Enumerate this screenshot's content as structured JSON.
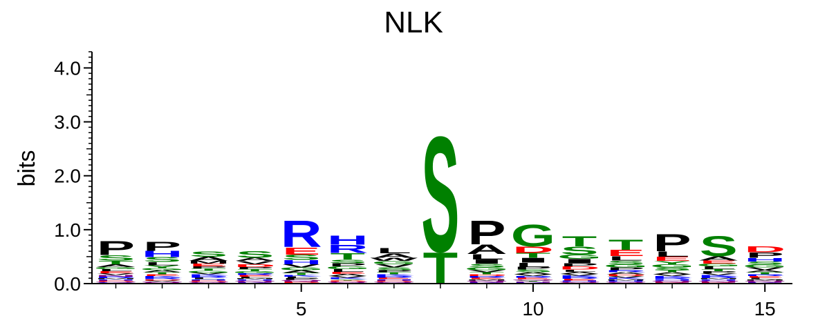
{
  "chart_data": {
    "type": "sequence-logo",
    "title": "NLK",
    "ylabel": "bits",
    "xlabel": "",
    "ylim": [
      0,
      4.3
    ],
    "y_ticks": [
      "0.0",
      "1.0",
      "2.0",
      "3.0",
      "4.0"
    ],
    "y_tick_values": [
      0,
      1,
      2,
      3,
      4
    ],
    "x_ticks": [
      "5",
      "10",
      "15"
    ],
    "x_tick_values": [
      5,
      10,
      15
    ],
    "positions": [
      1,
      2,
      3,
      4,
      5,
      6,
      7,
      8,
      9,
      10,
      11,
      12,
      13,
      14,
      15
    ],
    "colors": {
      "polar": "#008000",
      "basic": "#0000ff",
      "acidic": "#ff0000",
      "hydrophobic": "#000000",
      "neutral": "#800080"
    },
    "residue_colors": {
      "S": "#008000",
      "T": "#008000",
      "G": "#008000",
      "Y": "#008000",
      "C": "#008000",
      "N": "#800080",
      "Q": "#800080",
      "R": "#0000ff",
      "K": "#0000ff",
      "H": "#0000ff",
      "D": "#ff0000",
      "E": "#ff0000",
      "P": "#000000",
      "A": "#000000",
      "L": "#000000",
      "I": "#000000",
      "V": "#000000",
      "M": "#000000",
      "F": "#000000",
      "W": "#000000"
    },
    "stacks": [
      [
        [
          "P",
          0.26
        ],
        [
          "S",
          0.1
        ],
        [
          "T",
          0.07
        ],
        [
          "A",
          0.05
        ],
        [
          "E",
          0.04
        ],
        [
          "L",
          0.04
        ],
        [
          "G",
          0.04
        ],
        [
          "R",
          0.03
        ],
        [
          "N",
          0.03
        ],
        [
          "V",
          0.03
        ],
        [
          "K",
          0.02
        ],
        [
          "Q",
          0.02
        ],
        [
          "D",
          0.02
        ],
        [
          "H",
          0.02
        ],
        [
          "M",
          0.02
        ]
      ],
      [
        [
          "P",
          0.17
        ],
        [
          "H",
          0.12
        ],
        [
          "L",
          0.06
        ],
        [
          "S",
          0.09
        ],
        [
          "Y",
          0.05
        ],
        [
          "T",
          0.04
        ],
        [
          "A",
          0.04
        ],
        [
          "G",
          0.04
        ],
        [
          "R",
          0.03
        ],
        [
          "K",
          0.03
        ],
        [
          "E",
          0.03
        ],
        [
          "N",
          0.02
        ],
        [
          "Q",
          0.02
        ],
        [
          "V",
          0.02
        ],
        [
          "D",
          0.02
        ]
      ],
      [
        [
          "S",
          0.1
        ],
        [
          "A",
          0.08
        ],
        [
          "E",
          0.05
        ],
        [
          "M",
          0.05
        ],
        [
          "G",
          0.04
        ],
        [
          "T",
          0.04
        ],
        [
          "P",
          0.04
        ],
        [
          "L",
          0.03
        ],
        [
          "R",
          0.03
        ],
        [
          "K",
          0.03
        ],
        [
          "V",
          0.03
        ],
        [
          "N",
          0.02
        ],
        [
          "Q",
          0.02
        ],
        [
          "D",
          0.02
        ],
        [
          "H",
          0.02
        ]
      ],
      [
        [
          "S",
          0.13
        ],
        [
          "V",
          0.06
        ],
        [
          "A",
          0.06
        ],
        [
          "D",
          0.05
        ],
        [
          "G",
          0.04
        ],
        [
          "T",
          0.04
        ],
        [
          "P",
          0.04
        ],
        [
          "L",
          0.03
        ],
        [
          "E",
          0.03
        ],
        [
          "R",
          0.03
        ],
        [
          "K",
          0.02
        ],
        [
          "N",
          0.02
        ],
        [
          "Q",
          0.02
        ],
        [
          "H",
          0.02
        ],
        [
          "M",
          0.02
        ]
      ],
      [
        [
          "R",
          0.5
        ],
        [
          "E",
          0.14
        ],
        [
          "S",
          0.1
        ],
        [
          "V",
          0.06
        ],
        [
          "H",
          0.08
        ],
        [
          "A",
          0.05
        ],
        [
          "G",
          0.05
        ],
        [
          "T",
          0.04
        ],
        [
          "P",
          0.03
        ],
        [
          "L",
          0.03
        ],
        [
          "K",
          0.03
        ],
        [
          "D",
          0.02
        ],
        [
          "N",
          0.02
        ],
        [
          "Q",
          0.02
        ],
        [
          "M",
          0.01
        ]
      ],
      [
        [
          "H",
          0.17
        ],
        [
          "R",
          0.15
        ],
        [
          "T",
          0.12
        ],
        [
          "S",
          0.07
        ],
        [
          "P",
          0.06
        ],
        [
          "L",
          0.05
        ],
        [
          "G",
          0.05
        ],
        [
          "A",
          0.04
        ],
        [
          "E",
          0.04
        ],
        [
          "K",
          0.03
        ],
        [
          "V",
          0.03
        ],
        [
          "N",
          0.02
        ],
        [
          "Q",
          0.02
        ],
        [
          "D",
          0.02
        ],
        [
          "Y",
          0.02
        ]
      ],
      [
        [
          "L",
          0.1
        ],
        [
          "A",
          0.08
        ],
        [
          "V",
          0.06
        ],
        [
          "G",
          0.06
        ],
        [
          "W",
          0.06
        ],
        [
          "S",
          0.05
        ],
        [
          "T",
          0.04
        ],
        [
          "P",
          0.04
        ],
        [
          "E",
          0.03
        ],
        [
          "R",
          0.03
        ],
        [
          "K",
          0.03
        ],
        [
          "N",
          0.02
        ],
        [
          "Q",
          0.02
        ],
        [
          "D",
          0.02
        ],
        [
          "H",
          0.02
        ]
      ],
      [
        [
          "S",
          2.2
        ],
        [
          "T",
          0.6
        ]
      ],
      [
        [
          "P",
          0.45
        ],
        [
          "A",
          0.18
        ],
        [
          "L",
          0.1
        ],
        [
          "I",
          0.08
        ],
        [
          "S",
          0.07
        ],
        [
          "G",
          0.05
        ],
        [
          "T",
          0.04
        ],
        [
          "V",
          0.04
        ],
        [
          "E",
          0.03
        ],
        [
          "R",
          0.03
        ],
        [
          "D",
          0.03
        ],
        [
          "K",
          0.02
        ],
        [
          "N",
          0.02
        ],
        [
          "Q",
          0.02
        ],
        [
          "M",
          0.02
        ]
      ],
      [
        [
          "G",
          0.42
        ],
        [
          "D",
          0.12
        ],
        [
          "I",
          0.09
        ],
        [
          "L",
          0.08
        ],
        [
          "T",
          0.09
        ],
        [
          "S",
          0.05
        ],
        [
          "P",
          0.05
        ],
        [
          "A",
          0.04
        ],
        [
          "E",
          0.03
        ],
        [
          "R",
          0.03
        ],
        [
          "V",
          0.03
        ],
        [
          "K",
          0.02
        ],
        [
          "N",
          0.02
        ],
        [
          "Y",
          0.02
        ],
        [
          "Q",
          0.02
        ]
      ],
      [
        [
          "T",
          0.2
        ],
        [
          "I",
          0.08
        ],
        [
          "S",
          0.15
        ],
        [
          "G",
          0.08
        ],
        [
          "D",
          0.06
        ],
        [
          "P",
          0.06
        ],
        [
          "A",
          0.04
        ],
        [
          "L",
          0.04
        ],
        [
          "E",
          0.03
        ],
        [
          "R",
          0.03
        ],
        [
          "K",
          0.03
        ],
        [
          "V",
          0.03
        ],
        [
          "N",
          0.02
        ],
        [
          "Q",
          0.02
        ],
        [
          "H",
          0.02
        ]
      ],
      [
        [
          "T",
          0.2
        ],
        [
          "E",
          0.12
        ],
        [
          "L",
          0.08
        ],
        [
          "S",
          0.07
        ],
        [
          "G",
          0.06
        ],
        [
          "P",
          0.05
        ],
        [
          "A",
          0.04
        ],
        [
          "R",
          0.04
        ],
        [
          "K",
          0.03
        ],
        [
          "V",
          0.03
        ],
        [
          "D",
          0.03
        ],
        [
          "N",
          0.02
        ],
        [
          "Q",
          0.02
        ],
        [
          "H",
          0.02
        ],
        [
          "M",
          0.02
        ]
      ],
      [
        [
          "P",
          0.32
        ],
        [
          "L",
          0.1
        ],
        [
          "E",
          0.08
        ],
        [
          "G",
          0.06
        ],
        [
          "Y",
          0.06
        ],
        [
          "S",
          0.05
        ],
        [
          "A",
          0.04
        ],
        [
          "T",
          0.04
        ],
        [
          "R",
          0.03
        ],
        [
          "K",
          0.03
        ],
        [
          "V",
          0.03
        ],
        [
          "D",
          0.02
        ],
        [
          "N",
          0.02
        ],
        [
          "Q",
          0.02
        ],
        [
          "H",
          0.02
        ]
      ],
      [
        [
          "S",
          0.38
        ],
        [
          "A",
          0.08
        ],
        [
          "E",
          0.06
        ],
        [
          "L",
          0.05
        ],
        [
          "G",
          0.05
        ],
        [
          "P",
          0.04
        ],
        [
          "T",
          0.04
        ],
        [
          "R",
          0.03
        ],
        [
          "K",
          0.03
        ],
        [
          "V",
          0.03
        ],
        [
          "D",
          0.02
        ],
        [
          "N",
          0.02
        ],
        [
          "Q",
          0.02
        ],
        [
          "H",
          0.02
        ],
        [
          "M",
          0.02
        ]
      ],
      [
        [
          "D",
          0.11
        ],
        [
          "P",
          0.1
        ],
        [
          "H",
          0.07
        ],
        [
          "S",
          0.06
        ],
        [
          "V",
          0.05
        ],
        [
          "G",
          0.05
        ],
        [
          "T",
          0.04
        ],
        [
          "A",
          0.04
        ],
        [
          "L",
          0.03
        ],
        [
          "E",
          0.03
        ],
        [
          "R",
          0.03
        ],
        [
          "K",
          0.02
        ],
        [
          "N",
          0.02
        ],
        [
          "Q",
          0.02
        ],
        [
          "M",
          0.02
        ]
      ]
    ]
  }
}
